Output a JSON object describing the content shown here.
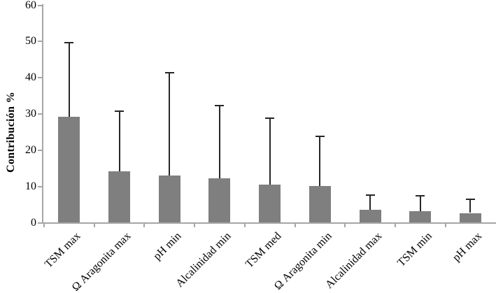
{
  "chart_data": {
    "type": "bar",
    "title": "",
    "ylabel": "Contribución %",
    "xlabel": "",
    "ylim": [
      0,
      60
    ],
    "yticks": [
      0,
      10,
      20,
      30,
      40,
      50,
      60
    ],
    "grid": false,
    "legend": false,
    "error_bars": "upper-only",
    "categories": [
      "TSM max",
      "Ω Aragonita max",
      "pH min",
      "Alcalinidad min",
      "TSM med",
      "Ω Aragonita min",
      "Alcalinidad max",
      "TSM min",
      "pH max"
    ],
    "values": [
      29.3,
      14.2,
      13.0,
      12.3,
      10.5,
      10.1,
      3.6,
      3.2,
      2.7
    ],
    "error_bar_tops": [
      49.6,
      30.8,
      41.4,
      32.4,
      28.8,
      23.8,
      7.6,
      7.4,
      6.4
    ],
    "colors": {
      "bar": "#7f7f7f",
      "error": "#262626",
      "axis": "#a6a6a6",
      "text": "#000000",
      "background": "#ffffff"
    }
  }
}
